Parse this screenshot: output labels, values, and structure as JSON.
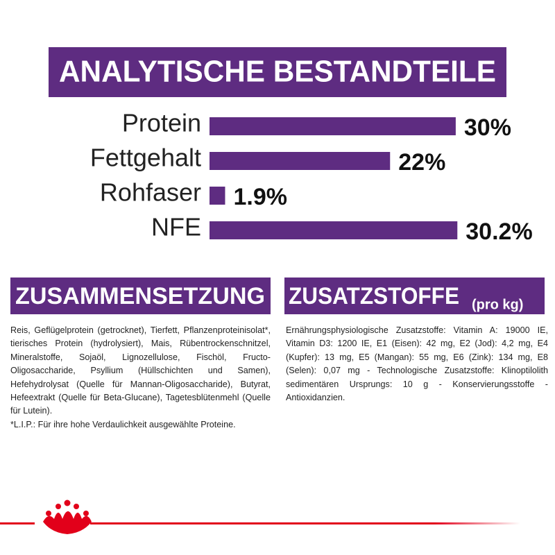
{
  "header": {
    "title": "ANALYTISCHE BESTANDTEILE"
  },
  "chart_data": {
    "type": "bar",
    "orientation": "horizontal",
    "color": "#5e2c81",
    "categories": [
      "Protein",
      "Fettgehalt",
      "Rohfaser",
      "NFE"
    ],
    "values": [
      30,
      22,
      1.9,
      30.2
    ],
    "value_labels": [
      "30%",
      "22%",
      "1.9%",
      "30.2%"
    ]
  },
  "composition": {
    "title": "ZUSAMMENSETZUNG",
    "text": "Reis, Geflügelprotein (getrocknet), Tierfett, Pflanzenproteinisolat*, tierisches Protein (hydrolysiert), Mais, Rübentrockenschnitzel, Mineralstoffe, Sojaöl, Lignozellulose, Fischöl, Fructo-Oligosaccharide, Psyllium (Hüllschichten und Samen), Hefehydrolysat (Quelle für Mannan-Oligosaccharide), Butyrat, Hefeextrakt (Quelle für Beta-Glucane), Tagetesblütenmehl (Quelle für Lutein).",
    "footnote": "*L.I.P.: Für ihre hohe Verdaulichkeit ausgewählte Proteine."
  },
  "additives": {
    "title": "ZUSATZSTOFFE",
    "unit": "(pro kg)",
    "text": "Ernährungsphysiologische Zusatzstoffe: Vitamin A: 19000 IE, Vitamin D3: 1200 IE, E1 (Eisen): 42 mg, E2 (Jod): 4,2 mg, E4 (Kupfer): 13 mg, E5 (Mangan): 55 mg, E6 (Zink): 134 mg, E8 (Selen): 0,07 mg - Technologische Zusatzstoffe: Klinoptilolith sedimentären Ursprungs: 10 g - Konservierungsstoffe - Antioxidanzien."
  }
}
